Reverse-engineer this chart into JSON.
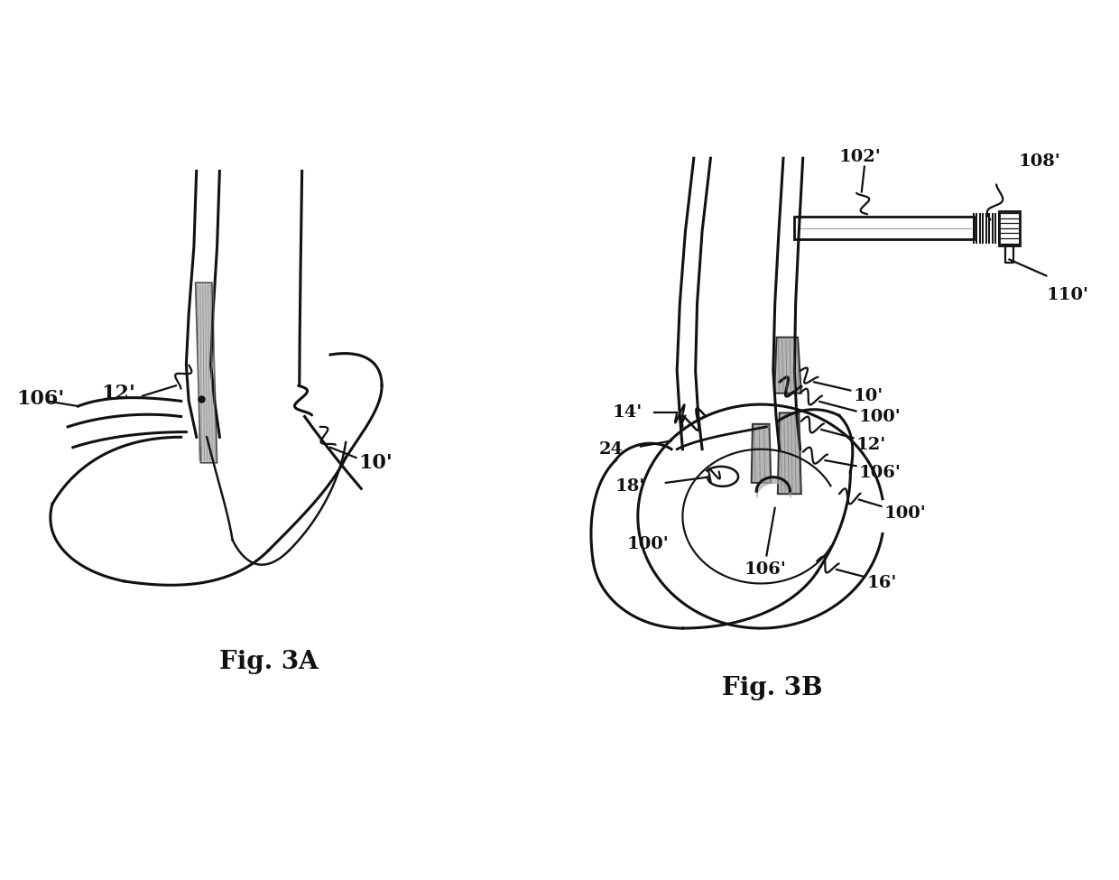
{
  "bg_color": "#ffffff",
  "line_color": "#111111",
  "gray_fill": "#aaaaaa",
  "light_gray": "#cccccc",
  "fig_label_a": "Fig. 3A",
  "fig_label_b": "Fig. 3B"
}
